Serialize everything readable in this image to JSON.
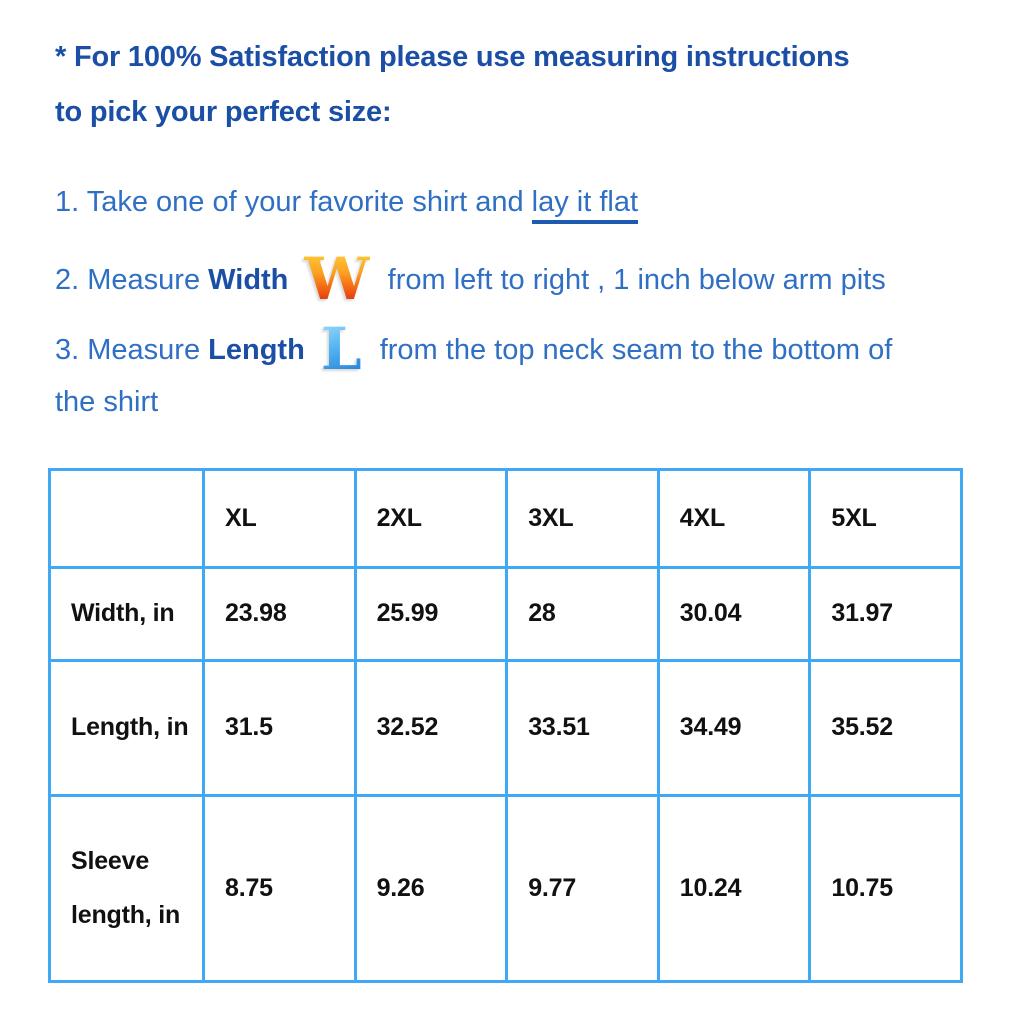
{
  "header": {
    "lines": [
      "* For 100% Satisfaction please use measuring instructions",
      "to pick your perfect size:"
    ]
  },
  "instructions": {
    "step1": {
      "number": "1.",
      "text": "Take one of your favorite shirt and",
      "link_text": "lay it flat"
    },
    "step2": {
      "number": "2.",
      "text_before": "Measure",
      "keyword": "Width",
      "icon": "letter-w-icon",
      "icon_char": "W",
      "text_after": "from left to right , 1 inch below arm pits"
    },
    "step3": {
      "number": "3.",
      "text_before": "Measure",
      "keyword": "Length",
      "icon": "letter-l-icon",
      "icon_char": "L",
      "text_after": "from the top neck seam to the bottom of",
      "text_wrap": "the shirt"
    }
  },
  "size_table": {
    "columns": [
      "",
      "XL",
      "2XL",
      "3XL",
      "4XL",
      "5XL"
    ],
    "rows": [
      {
        "label": "Width, in",
        "values": [
          "23.98",
          "25.99",
          "28",
          "30.04",
          "31.97"
        ]
      },
      {
        "label": "Length, in",
        "values": [
          "31.5",
          "32.52",
          "33.51",
          "34.49",
          "35.52"
        ]
      },
      {
        "label": "Sleeve length, in",
        "values": [
          "8.75",
          "9.26",
          "9.77",
          "10.24",
          "10.75"
        ]
      }
    ]
  },
  "colors": {
    "heading_blue": "#1b4fa5",
    "body_blue": "#2f6fc4",
    "underline_blue": "#1e5bb0",
    "table_border_blue": "#3fa9f5",
    "table_text": "#111111",
    "w_icon_top": "#ffd43c",
    "w_icon_bottom": "#cf1a17",
    "l_icon_top": "#a5e1ff",
    "l_icon_bottom": "#1b74d4"
  }
}
